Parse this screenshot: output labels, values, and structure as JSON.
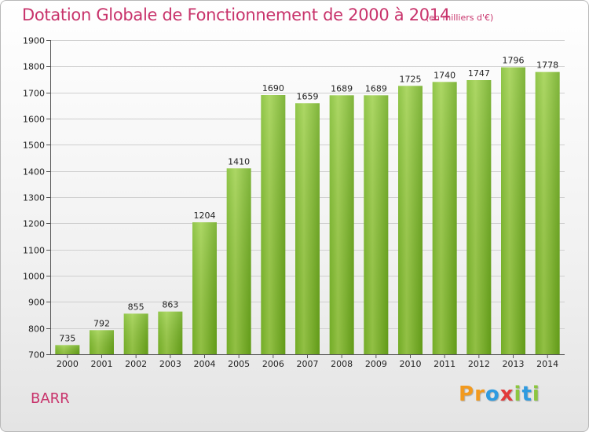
{
  "header": {
    "title": "Dotation Globale de Fonctionnement de 2000 à 2014",
    "unit": "(en milliers d'€)"
  },
  "footer": {
    "commune": "BARR",
    "logo": "Proxiti"
  },
  "colors": {
    "title": "#c8336b",
    "bar_light": "#9ed04a",
    "bar_dark": "#6aa81a",
    "grid": "#cfcfcf",
    "logo_letters": [
      "#f29a1f",
      "#f29a1f",
      "#2f9be0",
      "#e23b3b",
      "#8cc63f",
      "#2f9be0",
      "#8cc63f"
    ]
  },
  "chart_data": {
    "type": "bar",
    "title": "Dotation Globale de Fonctionnement de 2000 à 2014",
    "subtitle": "(en milliers d'€)",
    "categories": [
      "2000",
      "2001",
      "2002",
      "2003",
      "2004",
      "2005",
      "2006",
      "2007",
      "2008",
      "2009",
      "2010",
      "2011",
      "2012",
      "2013",
      "2014"
    ],
    "values": [
      735,
      792,
      855,
      863,
      1204,
      1410,
      1690,
      1659,
      1689,
      1689,
      1725,
      1740,
      1747,
      1796,
      1778
    ],
    "ylim": [
      700,
      1900
    ],
    "yticks": [
      700,
      800,
      900,
      1000,
      1100,
      1200,
      1300,
      1400,
      1500,
      1600,
      1700,
      1800,
      1900
    ],
    "grid": true,
    "data_labels": true
  }
}
